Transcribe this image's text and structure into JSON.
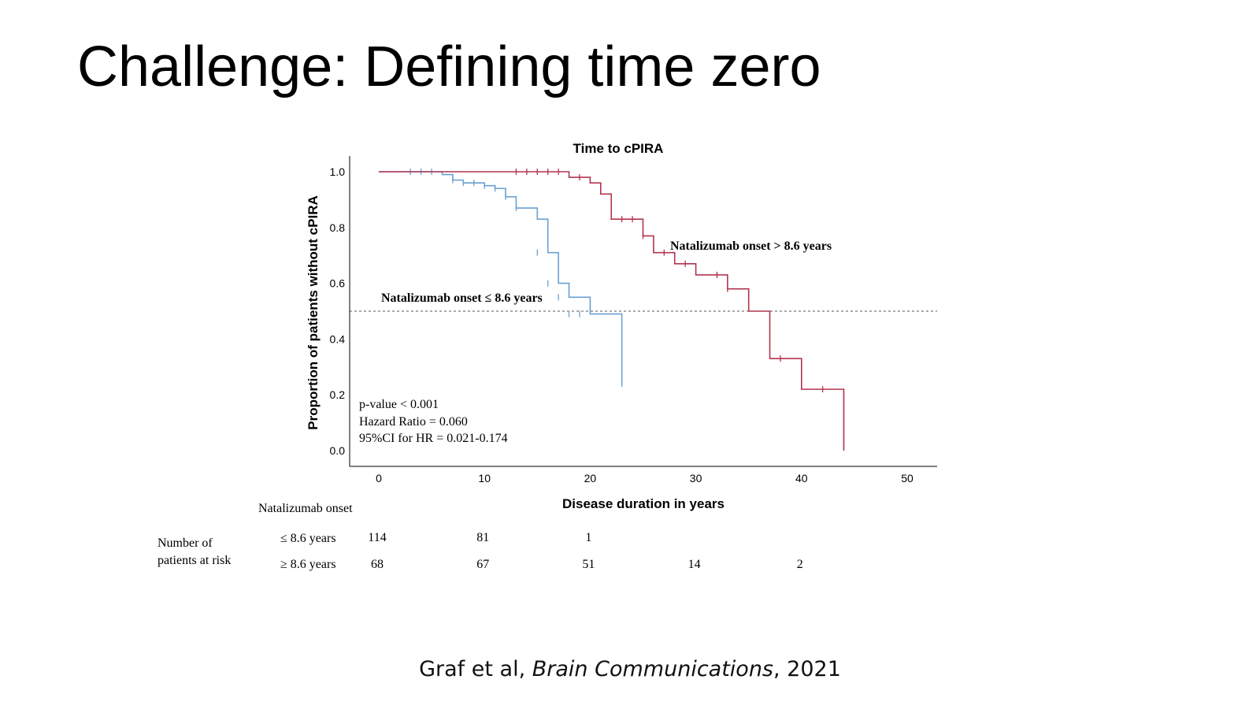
{
  "slide": {
    "title": "Challenge: Defining time zero"
  },
  "citation": {
    "authors": "Graf et al, ",
    "journal": "Brain Communications",
    "year": ", 2021"
  },
  "colors": {
    "early_onset": "#6aa0d0",
    "late_onset": "#b3344f",
    "reference_line": "#555555"
  },
  "chart_data": {
    "type": "line",
    "title": "Time to cPIRA",
    "xlabel": "Disease duration in years",
    "ylabel": "Proportion of patients without cPIRA",
    "xlim": [
      0,
      50
    ],
    "ylim": [
      0,
      1
    ],
    "x_ticks": [
      0,
      10,
      20,
      30,
      40,
      50
    ],
    "y_ticks": [
      "0.0",
      "0.2",
      "0.4",
      "0.6",
      "0.8",
      "1.0"
    ],
    "reference_line_y": 0.5,
    "series": [
      {
        "name": "Natalizumab onset ≤ 8.6 years",
        "color": "#6aa0d0",
        "x": [
          0,
          6,
          7,
          8,
          10,
          11,
          12,
          13,
          15,
          16,
          17,
          18,
          20,
          23
        ],
        "y": [
          1.0,
          0.99,
          0.97,
          0.96,
          0.95,
          0.94,
          0.91,
          0.87,
          0.83,
          0.71,
          0.6,
          0.55,
          0.49,
          0.24
        ],
        "censor_x": [
          3,
          4,
          5,
          7,
          8,
          9,
          10,
          11,
          12,
          13,
          15,
          16,
          17,
          18,
          19,
          23
        ],
        "censor_y": [
          1.0,
          1.0,
          1.0,
          0.97,
          0.96,
          0.96,
          0.95,
          0.94,
          0.91,
          0.87,
          0.71,
          0.6,
          0.55,
          0.49,
          0.49,
          0.24
        ]
      },
      {
        "name": "Natalizumab onset > 8.6 years",
        "color": "#b3344f",
        "x": [
          0,
          18,
          20,
          21,
          22,
          25,
          26,
          28,
          30,
          33,
          35,
          37,
          40,
          44
        ],
        "y": [
          1.0,
          0.98,
          0.96,
          0.92,
          0.83,
          0.77,
          0.71,
          0.67,
          0.63,
          0.58,
          0.5,
          0.33,
          0.22,
          0.0
        ],
        "censor_x": [
          13,
          14,
          15,
          16,
          17,
          19,
          23,
          24,
          25,
          27,
          29,
          32,
          33,
          38,
          42
        ],
        "censor_y": [
          1.0,
          1.0,
          1.0,
          1.0,
          1.0,
          0.98,
          0.83,
          0.83,
          0.77,
          0.71,
          0.67,
          0.63,
          0.58,
          0.33,
          0.22
        ]
      }
    ],
    "annotations": {
      "late_label": "Natalizumab onset > 8.6 years",
      "early_label": "Natalizumab onset ≤ 8.6 years",
      "p_value": "p-value < 0.001",
      "hazard_ratio": "Hazard Ratio = 0.060",
      "ci": "95%CI for HR = 0.021-0.174"
    },
    "risk_table": {
      "group_header": "Natalizumab onset",
      "row_label_line1": "Number of",
      "row_label_line2": "patients at risk",
      "rows": [
        {
          "label": "≤ 8.6 years",
          "values": [
            "114",
            "81",
            "1",
            "",
            ""
          ]
        },
        {
          "label": "≥ 8.6 years",
          "values": [
            "68",
            "67",
            "51",
            "14",
            "2"
          ]
        }
      ]
    }
  }
}
